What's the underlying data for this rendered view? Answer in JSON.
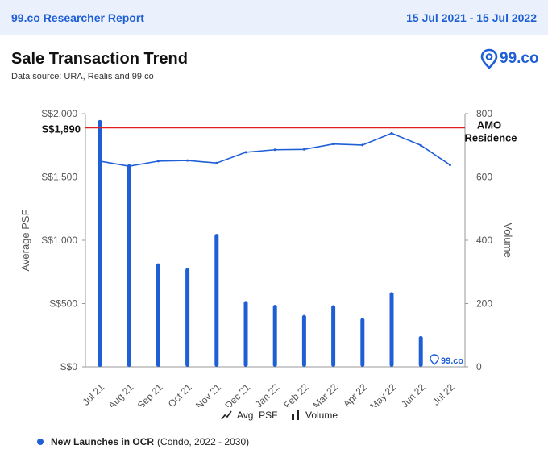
{
  "header": {
    "brand": "99.co Researcher Report",
    "date_range": "15 Jul 2021 - 15 Jul 2022"
  },
  "logo": {
    "text": "99.co",
    "icon": "location-pin-icon"
  },
  "watermark": {
    "text": "99.co",
    "icon": "location-pin-icon"
  },
  "title": "Sale Transaction Trend",
  "source": "Data source: URA, Realis and 99.co",
  "legend": {
    "psf_label": "Avg. PSF",
    "volume_label": "Volume"
  },
  "note": {
    "bold": "New Launches in OCR",
    "rest": "(Condo, 2022 - 2030)"
  },
  "colors": {
    "primary": "#1f5fd6",
    "reference": "#e02020"
  },
  "chart_data": {
    "type": "bar",
    "title": "Sale Transaction Trend",
    "categories": [
      "Jul 21",
      "Aug 21",
      "Sep 21",
      "Oct 21",
      "Nov 21",
      "Dec 21",
      "Jan 22",
      "Feb 22",
      "Mar 22",
      "Apr 22",
      "May 22",
      "Jun 22",
      "Jul 22"
    ],
    "series": [
      {
        "name": "Volume",
        "type": "bar",
        "axis": "right",
        "values": [
          780,
          640,
          327,
          312,
          420,
          208,
          196,
          164,
          195,
          154,
          236,
          97,
          0
        ]
      },
      {
        "name": "Avg. PSF",
        "type": "line",
        "axis": "left",
        "values": [
          1625,
          1585,
          1625,
          1630,
          1610,
          1695,
          1715,
          1718,
          1760,
          1752,
          1845,
          1750,
          1595
        ]
      }
    ],
    "ylabel": "Average PSF",
    "y2label": "Volume",
    "ylim": [
      0,
      2000
    ],
    "y2lim": [
      0,
      800
    ],
    "yticks": [
      "S$0",
      "S$500",
      "S$1,000",
      "S$1,500",
      "S$2,000"
    ],
    "ytick_values": [
      0,
      500,
      1000,
      1500,
      2000
    ],
    "y2ticks": [
      "0",
      "200",
      "400",
      "600",
      "800"
    ],
    "y2tick_values": [
      0,
      200,
      400,
      600,
      800
    ],
    "reference_line": {
      "value": 1890,
      "value_label": "S$1,890",
      "label_line1": "AMO",
      "label_line2": "Residence"
    },
    "grid": false,
    "legend_position": "bottom"
  }
}
